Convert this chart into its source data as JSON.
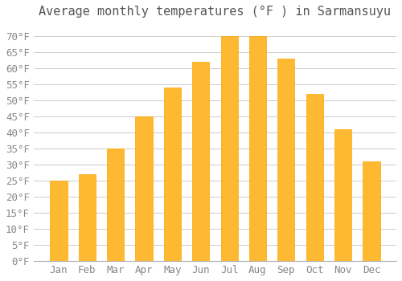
{
  "title": "Average monthly temperatures (°F ) in Sarmansuyu",
  "months": [
    "Jan",
    "Feb",
    "Mar",
    "Apr",
    "May",
    "Jun",
    "Jul",
    "Aug",
    "Sep",
    "Oct",
    "Nov",
    "Dec"
  ],
  "values": [
    25,
    27,
    35,
    45,
    54,
    62,
    70,
    70,
    63,
    52,
    41,
    31
  ],
  "bar_color": "#FDB932",
  "bar_edge_color": "#FFA500",
  "background_color": "#FFFFFF",
  "grid_color": "#CCCCCC",
  "ylim": [
    0,
    73
  ],
  "yticks": [
    0,
    5,
    10,
    15,
    20,
    25,
    30,
    35,
    40,
    45,
    50,
    55,
    60,
    65,
    70
  ],
  "title_fontsize": 11,
  "tick_fontsize": 9,
  "title_color": "#555555",
  "tick_color": "#888888"
}
